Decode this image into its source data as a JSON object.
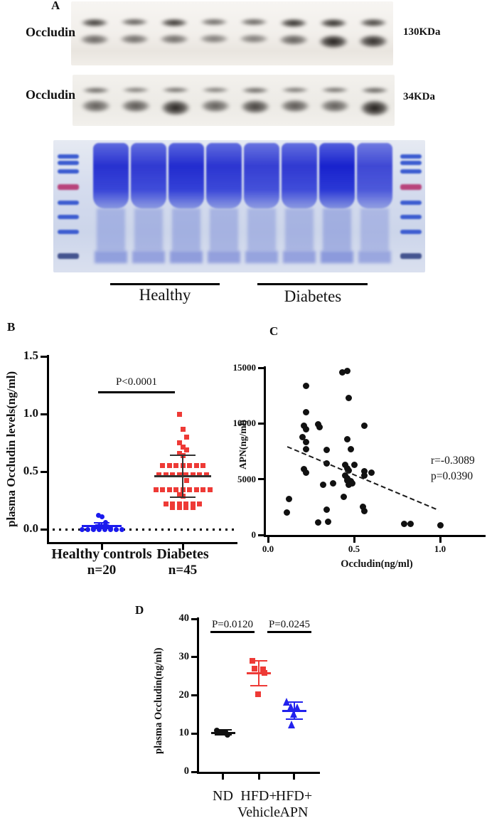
{
  "figure": {
    "panel_labels": {
      "a": "A",
      "b": "B",
      "c": "C",
      "d": "D"
    }
  },
  "panel_a": {
    "blots": [
      {
        "antibody": "Occludin",
        "weight": "130KDa",
        "upper_band_intensity": [
          0.8,
          0.55,
          0.85,
          0.45,
          0.5,
          0.9,
          0.9,
          0.75
        ],
        "lower_band_intensity": [
          0.5,
          0.45,
          0.45,
          0.35,
          0.35,
          0.55,
          1.0,
          0.9
        ]
      },
      {
        "antibody": "Occludin",
        "weight": "34KDa",
        "upper_band_intensity": [
          0.45,
          0.3,
          0.4,
          0.3,
          0.45,
          0.35,
          0.4,
          0.5
        ],
        "lower_band_intensity": [
          0.55,
          0.6,
          0.95,
          0.55,
          0.75,
          0.6,
          0.55,
          1.0
        ]
      }
    ],
    "gel": {
      "lane_count": 8,
      "lane_intensity": [
        0.92,
        0.88,
        0.95,
        0.9,
        0.85,
        0.88,
        1.0,
        0.8
      ],
      "ladder_positions": [
        0.11,
        0.155,
        0.22,
        0.335,
        0.455,
        0.565,
        0.675,
        0.855
      ],
      "ladder_red_index": 3,
      "groups": [
        {
          "label": "Healthy"
        },
        {
          "label": "Diabetes"
        }
      ]
    }
  },
  "chart_data": [
    {
      "id": "B",
      "type": "scatter",
      "ylabel": "plasma Occludin levels(ng/ml)",
      "ylim": [
        0,
        1.5
      ],
      "yticks": [
        0.0,
        0.5,
        1.0,
        1.5
      ],
      "baseline_dotted_y": 0,
      "significance": {
        "label": "P<0.0001"
      },
      "groups": [
        {
          "name": "Healthy controls",
          "n_label": "n=20",
          "marker": "circle",
          "color": "#1a1aee",
          "error_color": "#1a1aee",
          "mean": 0.03,
          "sd_top": 0.055,
          "sd_bottom": 0.005,
          "values": [
            0.12,
            0.11,
            0.06,
            0.03,
            0.03,
            0.02,
            0.02,
            0.02,
            0.01,
            0.01,
            0.01,
            0.01,
            0,
            0,
            0,
            0,
            0,
            0,
            0,
            0
          ]
        },
        {
          "name": "Diabetes",
          "n_label": "n=45",
          "marker": "square",
          "color": "#ee3a36",
          "error_color": "#333333",
          "mean": 0.46,
          "sd_top": 0.64,
          "sd_bottom": 0.28,
          "values": [
            1.0,
            0.87,
            0.8,
            0.75,
            0.71,
            0.69,
            0.66,
            0.64,
            0.55,
            0.55,
            0.55,
            0.55,
            0.55,
            0.55,
            0.55,
            0.47,
            0.47,
            0.47,
            0.47,
            0.47,
            0.47,
            0.47,
            0.47,
            0.42,
            0.34,
            0.34,
            0.34,
            0.34,
            0.34,
            0.34,
            0.34,
            0.34,
            0.34,
            0.3,
            0.29,
            0.22,
            0.22,
            0.22,
            0.22,
            0.22,
            0.22,
            0.19,
            0.19,
            0.19,
            0.19
          ]
        }
      ]
    },
    {
      "id": "C",
      "type": "scatter",
      "xlabel": "Occludin(ng/ml)",
      "ylabel": "APN(ng/ml)",
      "xlim": [
        0,
        1.25
      ],
      "ylim": [
        0,
        15000
      ],
      "xticks": [
        0.0,
        0.5,
        1.0
      ],
      "yticks": [
        0,
        5000,
        10000,
        15000
      ],
      "point_color": "#111111",
      "annotation": {
        "r_label": "r=-0.3089",
        "p_label": "p=0.0390"
      },
      "regression_line": {
        "x1": 0.11,
        "y1": 8000,
        "x2": 0.99,
        "y2": 2300
      },
      "points": [
        [
          0.43,
          14600
        ],
        [
          0.46,
          14700
        ],
        [
          0.22,
          13400
        ],
        [
          0.47,
          12300
        ],
        [
          0.22,
          11000
        ],
        [
          0.21,
          9800
        ],
        [
          0.22,
          9500
        ],
        [
          0.29,
          9900
        ],
        [
          0.3,
          9700
        ],
        [
          0.56,
          9800
        ],
        [
          0.2,
          8800
        ],
        [
          0.22,
          8300
        ],
        [
          0.46,
          8600
        ],
        [
          0.22,
          7700
        ],
        [
          0.48,
          7700
        ],
        [
          0.34,
          7600
        ],
        [
          0.34,
          6400
        ],
        [
          0.45,
          6300
        ],
        [
          0.5,
          6300
        ],
        [
          0.21,
          5900
        ],
        [
          0.22,
          5600
        ],
        [
          0.46,
          6000
        ],
        [
          0.47,
          5750
        ],
        [
          0.56,
          5700
        ],
        [
          0.6,
          5560
        ],
        [
          0.45,
          5360
        ],
        [
          0.46,
          5100
        ],
        [
          0.56,
          5300
        ],
        [
          0.46,
          4900
        ],
        [
          0.48,
          4800
        ],
        [
          0.47,
          4470
        ],
        [
          0.49,
          4600
        ],
        [
          0.32,
          4470
        ],
        [
          0.38,
          4600
        ],
        [
          0.44,
          3400
        ],
        [
          0.12,
          3200
        ],
        [
          0.55,
          2500
        ],
        [
          0.56,
          2170
        ],
        [
          0.34,
          2240
        ],
        [
          0.11,
          2040
        ],
        [
          0.29,
          1100
        ],
        [
          0.35,
          1210
        ],
        [
          0.79,
          1020
        ],
        [
          0.83,
          1020
        ],
        [
          1.0,
          830
        ]
      ]
    },
    {
      "id": "D",
      "type": "scatter",
      "ylabel": "plasma Occludin(ng/ml)",
      "ylim": [
        0,
        40
      ],
      "yticks": [
        0,
        10,
        20,
        30,
        40
      ],
      "significance": [
        {
          "label": "P=0.0120",
          "between": [
            0,
            1
          ]
        },
        {
          "label": "P=0.0245",
          "between": [
            1,
            2
          ]
        }
      ],
      "groups": [
        {
          "name": "ND",
          "name_lines": [
            "ND"
          ],
          "marker": "circle",
          "color": "#111111",
          "error_color": "#111111",
          "mean": 10.2,
          "sd_top": 10.9,
          "sd_bottom": 9.6,
          "values": [
            10.7,
            10.5,
            10.4,
            10.2,
            9.6
          ]
        },
        {
          "name": "HFD+ Vehicle",
          "name_lines": [
            "HFD+",
            "Vehicle"
          ],
          "marker": "square",
          "color": "#ee3a36",
          "error_color": "#ee3a36",
          "mean": 25.8,
          "sd_top": 29.1,
          "sd_bottom": 22.6,
          "values": [
            29,
            27,
            26.8,
            25.9,
            20.3
          ]
        },
        {
          "name": "HFD+ APN",
          "name_lines": [
            "HFD+",
            "APN"
          ],
          "marker": "triangle",
          "color": "#2222ee",
          "error_color": "#2222ee",
          "mean": 16,
          "sd_top": 18.3,
          "sd_bottom": 13.8,
          "values": [
            18.3,
            17.1,
            16.8,
            15.2,
            12.3
          ]
        }
      ]
    }
  ]
}
